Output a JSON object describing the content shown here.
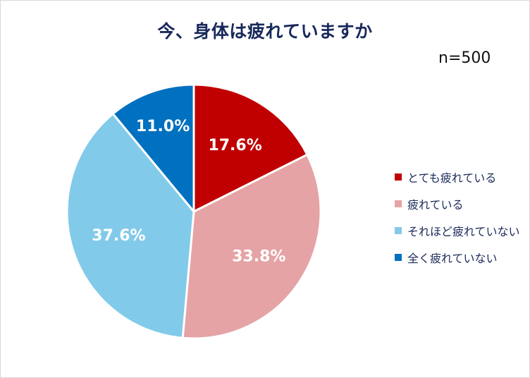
{
  "chart_data": {
    "type": "pie",
    "title": "今、身体は疲れていますか",
    "annotation": "n=500",
    "start_angle": "12 o'clock, clockwise",
    "categories": [
      "とても疲れている",
      "疲れている",
      "それほど疲れていない",
      "全く疲れていない"
    ],
    "values": [
      17.6,
      33.8,
      37.6,
      11.0
    ],
    "labels": [
      "17.6%",
      "33.8%",
      "37.6%",
      "11.0%"
    ],
    "colors": [
      "#c00000",
      "#e5a3a5",
      "#82caea",
      "#0070c0"
    ],
    "legend_position": "right",
    "unit": "%"
  },
  "header": {
    "title": "今、身体は疲れていますか",
    "sample_size": "n=500"
  },
  "legend": {
    "items": [
      {
        "label": "とても疲れている",
        "color": "#c00000"
      },
      {
        "label": "疲れている",
        "color": "#e5a3a5"
      },
      {
        "label": "それほど疲れていない",
        "color": "#82caea"
      },
      {
        "label": "全く疲れていない",
        "color": "#0070c0"
      }
    ]
  }
}
